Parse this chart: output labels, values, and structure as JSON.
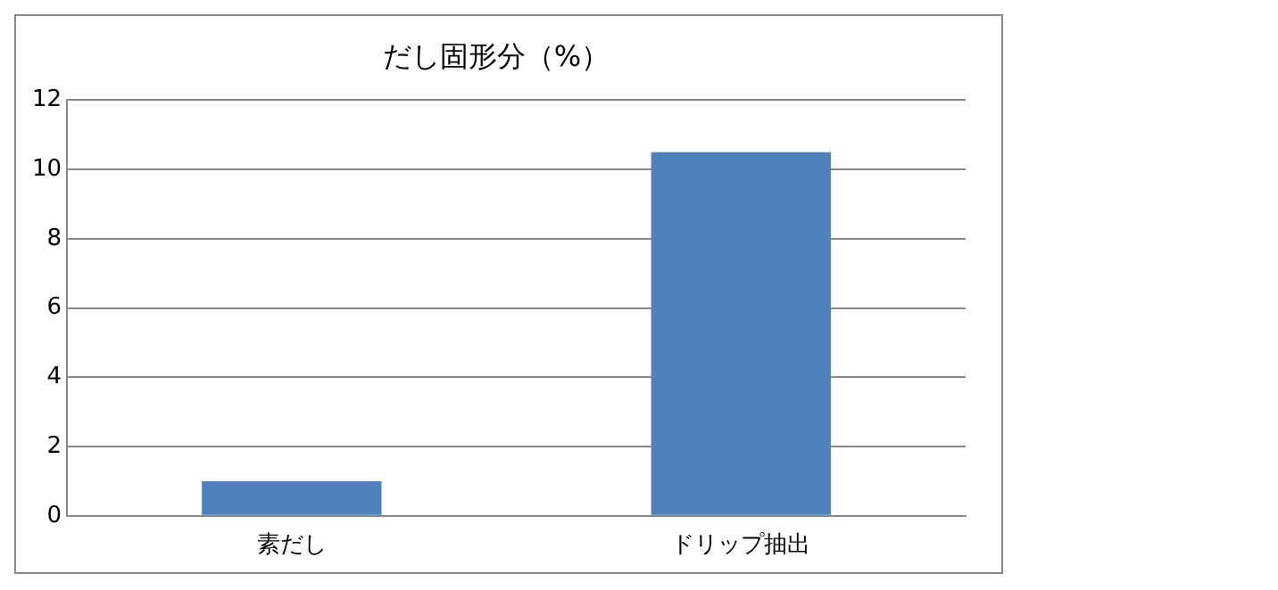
{
  "chart_data": {
    "type": "bar",
    "title": "だし固形分（%）",
    "categories": [
      "素だし",
      "ドリップ抽出"
    ],
    "values": [
      1.0,
      10.5
    ],
    "color": "#4f81bd",
    "ylim": [
      0,
      12
    ],
    "yticks": [
      0,
      2,
      4,
      6,
      8,
      10,
      12
    ],
    "grid": "y",
    "legend": false
  }
}
